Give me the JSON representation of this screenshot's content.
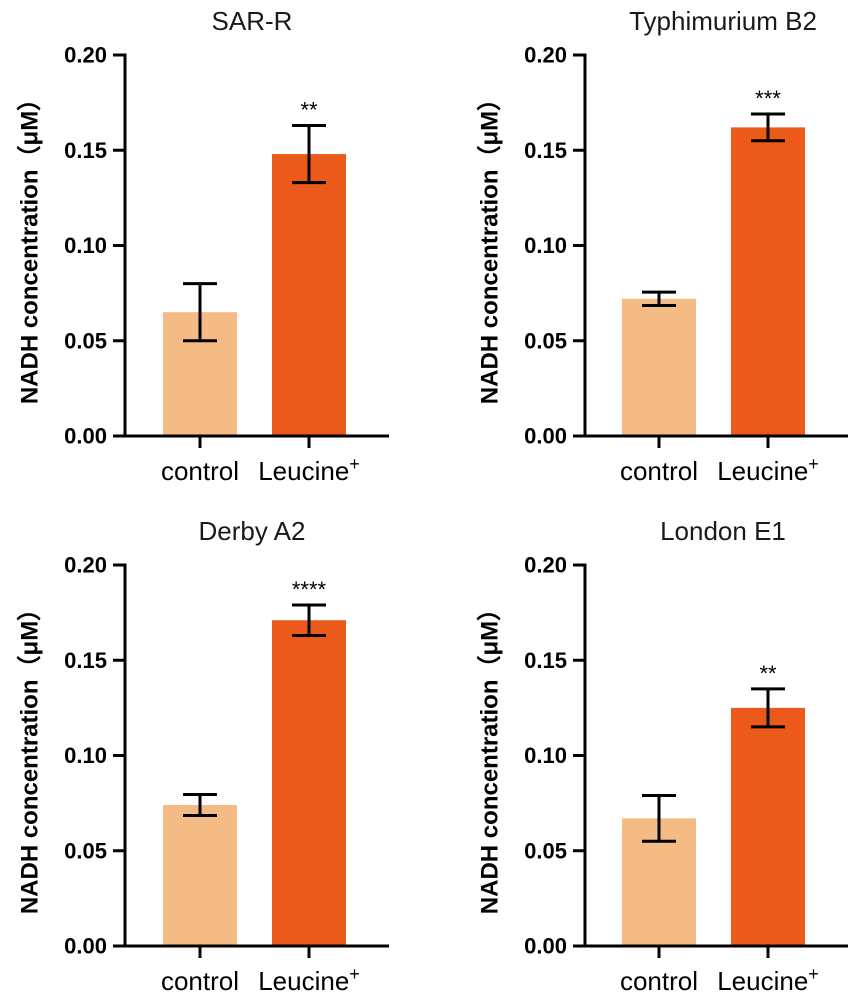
{
  "chart_data": [
    {
      "type": "bar",
      "title": "SAR-R",
      "ylabel": "NADH concentration（μM）",
      "ylim": [
        0,
        0.2
      ],
      "yticks": [
        "0.00",
        "0.05",
        "0.10",
        "0.15",
        "0.20"
      ],
      "categories": [
        {
          "label": "control",
          "superscript": ""
        },
        {
          "label": "Leucine",
          "superscript": "+"
        }
      ],
      "values": [
        0.065,
        0.148
      ],
      "errors": [
        0.015,
        0.015
      ],
      "significance": [
        "",
        "**"
      ],
      "colors": [
        "#F5BB84",
        "#EB5A1B"
      ]
    },
    {
      "type": "bar",
      "title": "Typhimurium B2",
      "ylabel": "NADH concentration（μM）",
      "ylim": [
        0,
        0.2
      ],
      "yticks": [
        "0.00",
        "0.05",
        "0.10",
        "0.15",
        "0.20"
      ],
      "categories": [
        {
          "label": "control",
          "superscript": ""
        },
        {
          "label": "Leucine",
          "superscript": "+"
        }
      ],
      "values": [
        0.072,
        0.162
      ],
      "errors": [
        0.0035,
        0.007
      ],
      "significance": [
        "",
        "***"
      ],
      "colors": [
        "#F5BB84",
        "#EB5A1B"
      ]
    },
    {
      "type": "bar",
      "title": "Derby A2",
      "ylabel": "NADH concentration（μM）",
      "ylim": [
        0,
        0.2
      ],
      "yticks": [
        "0.00",
        "0.05",
        "0.10",
        "0.15",
        "0.20"
      ],
      "categories": [
        {
          "label": "control",
          "superscript": ""
        },
        {
          "label": "Leucine",
          "superscript": "+"
        }
      ],
      "values": [
        0.074,
        0.171
      ],
      "errors": [
        0.0055,
        0.008
      ],
      "significance": [
        "",
        "****"
      ],
      "colors": [
        "#F5BB84",
        "#EB5A1B"
      ]
    },
    {
      "type": "bar",
      "title": "London E1",
      "ylabel": "NADH concentration（μM）",
      "ylim": [
        0,
        0.2
      ],
      "yticks": [
        "0.00",
        "0.05",
        "0.10",
        "0.15",
        "0.20"
      ],
      "categories": [
        {
          "label": "control",
          "superscript": ""
        },
        {
          "label": "Leucine",
          "superscript": "+"
        }
      ],
      "values": [
        0.067,
        0.125
      ],
      "errors": [
        0.012,
        0.01
      ],
      "significance": [
        "",
        "**"
      ],
      "colors": [
        "#F5BB84",
        "#EB5A1B"
      ]
    }
  ]
}
